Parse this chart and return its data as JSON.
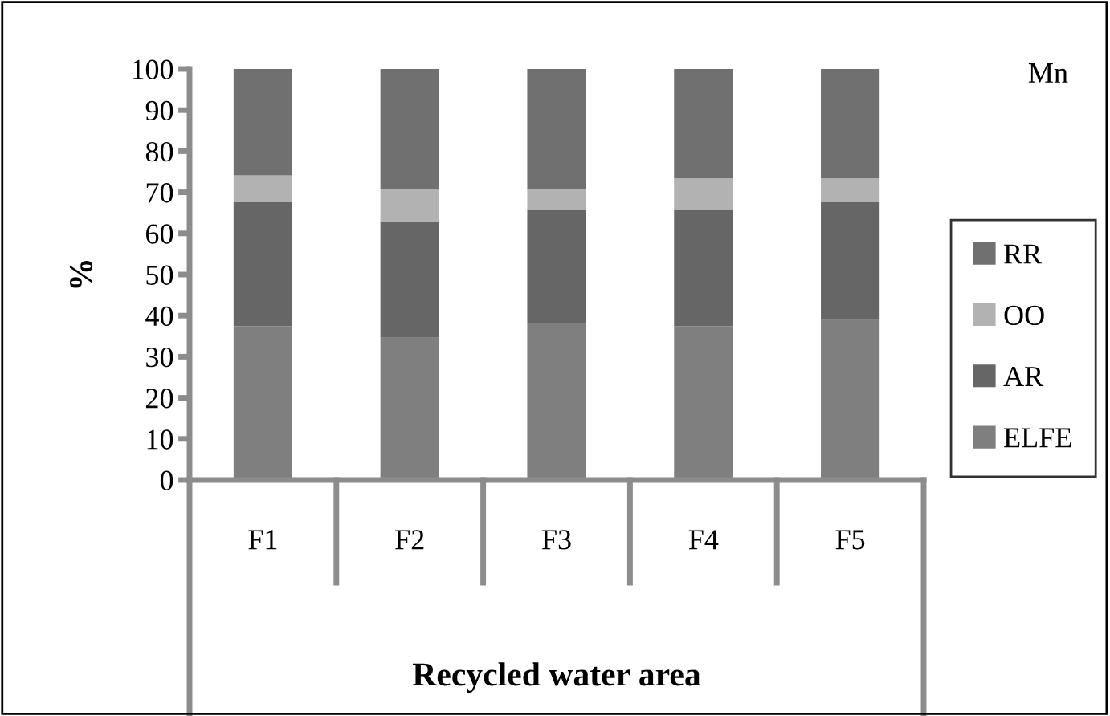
{
  "chart_data": {
    "type": "bar",
    "stacked": true,
    "xlabel": "Recycled water area",
    "ylabel": "%",
    "categories": [
      "F1",
      "F2",
      "F3",
      "F4",
      "F5"
    ],
    "series": [
      {
        "name": "ELFE",
        "color": "#7f7f7f",
        "values": [
          37.4,
          34.6,
          38.2,
          37.4,
          38.9
        ]
      },
      {
        "name": "AR",
        "color": "#666666",
        "values": [
          30.3,
          28.4,
          27.6,
          28.4,
          28.8
        ]
      },
      {
        "name": "OO",
        "color": "#b2b2b2",
        "values": [
          6.4,
          7.7,
          4.9,
          7.6,
          5.7
        ]
      },
      {
        "name": "RR",
        "color": "#707070",
        "values": [
          25.9,
          29.3,
          29.3,
          26.6,
          26.6
        ]
      }
    ],
    "ylim": [
      0,
      100
    ],
    "yticks": [
      0,
      10,
      20,
      30,
      40,
      50,
      60,
      70,
      80,
      90,
      100
    ],
    "grid": false,
    "legend": "right",
    "annotations": [
      "Mn"
    ]
  }
}
